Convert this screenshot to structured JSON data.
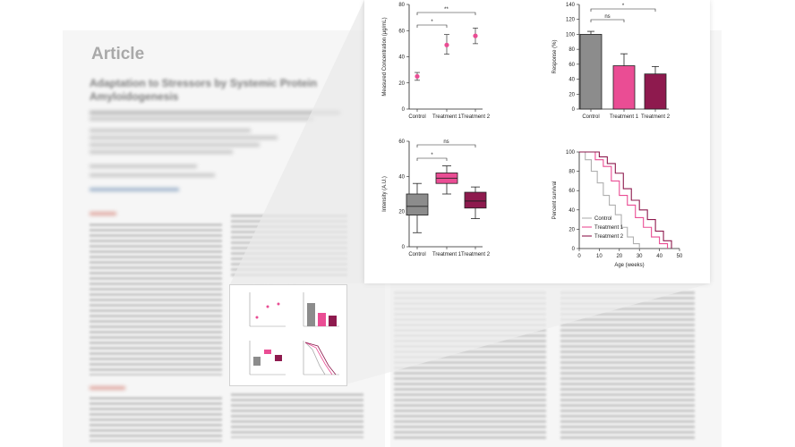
{
  "article": {
    "heading": "Article",
    "title": "Adaptation to Stressors by Systemic Protein Amyloidogenesis"
  },
  "colors": {
    "control": "#8c8c8c",
    "treatment1": "#ea4d94",
    "treatment2": "#8e1a4e",
    "control_line": "#b0b0b0"
  },
  "chart_data": [
    {
      "type": "scatter",
      "categories": [
        "Control",
        "Treatment 1",
        "Treatment 2"
      ],
      "values": [
        25,
        49,
        56
      ],
      "error_low": [
        22,
        42,
        50
      ],
      "error_high": [
        28,
        57,
        62
      ],
      "ylabel": "Measured Concentration (µg/mL)",
      "ylim": [
        0,
        80
      ],
      "yticks": [
        0,
        20,
        40,
        60,
        80
      ],
      "annotations": [
        {
          "from": 0,
          "to": 1,
          "label": "*"
        },
        {
          "from": 0,
          "to": 2,
          "label": "**"
        }
      ]
    },
    {
      "type": "bar",
      "categories": [
        "Control",
        "Treatment 1",
        "Treatment 2"
      ],
      "values": [
        100,
        58,
        47
      ],
      "error_high": [
        104,
        74,
        57
      ],
      "ylabel": "Response (%)",
      "ylim": [
        0,
        140
      ],
      "yticks": [
        0,
        20,
        40,
        60,
        80,
        100,
        120,
        140
      ],
      "annotations": [
        {
          "from": 0,
          "to": 1,
          "label": "ns"
        },
        {
          "from": 0,
          "to": 2,
          "label": "*"
        }
      ]
    },
    {
      "type": "box",
      "categories": [
        "Control",
        "Treatment 1",
        "Treatment 2"
      ],
      "boxes": [
        {
          "min": 8,
          "q1": 18,
          "median": 23,
          "q3": 30,
          "max": 36
        },
        {
          "min": 30,
          "q1": 36,
          "median": 39,
          "q3": 42,
          "max": 46
        },
        {
          "min": 16,
          "q1": 22,
          "median": 26,
          "q3": 31,
          "max": 34
        }
      ],
      "ylabel": "Intensity (A.U.)",
      "ylim": [
        0,
        60
      ],
      "yticks": [
        0,
        20,
        40,
        60
      ],
      "annotations": [
        {
          "from": 0,
          "to": 1,
          "label": "*"
        },
        {
          "from": 0,
          "to": 2,
          "label": "ns"
        }
      ]
    },
    {
      "type": "line",
      "xlabel": "Age (weeks)",
      "ylabel": "Percent survival",
      "xlim": [
        0,
        50
      ],
      "ylim": [
        0,
        100
      ],
      "xticks": [
        0,
        10,
        20,
        30,
        40,
        50
      ],
      "yticks": [
        0,
        20,
        40,
        60,
        80,
        100
      ],
      "legend_position": "bottom-left",
      "series": [
        {
          "name": "Control",
          "x": [
            0,
            3,
            6,
            9,
            12,
            15,
            18,
            21,
            24,
            27,
            30
          ],
          "y": [
            100,
            92,
            80,
            68,
            55,
            45,
            35,
            22,
            12,
            5,
            0
          ]
        },
        {
          "name": "Treatment 1",
          "x": [
            0,
            8,
            12,
            16,
            20,
            24,
            28,
            32,
            36,
            40,
            44
          ],
          "y": [
            100,
            92,
            85,
            70,
            55,
            45,
            32,
            22,
            12,
            5,
            0
          ]
        },
        {
          "name": "Treatment 2",
          "x": [
            0,
            10,
            14,
            18,
            22,
            26,
            30,
            34,
            38,
            42,
            46
          ],
          "y": [
            100,
            95,
            88,
            78,
            62,
            50,
            40,
            30,
            18,
            8,
            0
          ]
        }
      ]
    }
  ]
}
